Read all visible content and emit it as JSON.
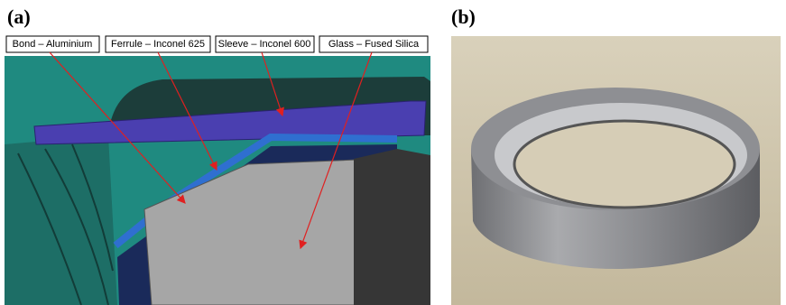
{
  "panels": [
    {
      "label": "(a)",
      "callouts": [
        "Bond – Aluminium",
        "Ferrule – Inconel 625",
        "Sleeve – Inconel 600",
        "Glass – Fused Silica"
      ]
    },
    {
      "label": "(b)"
    }
  ]
}
